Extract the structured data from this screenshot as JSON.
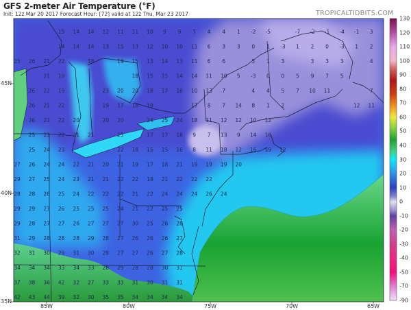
{
  "header": {
    "title": "GFS 2-meter Air Temperature (°F)",
    "subtitle": "Init: 12z Mar 20 2017   Forecast Hour: [72]   valid at 12z Thu, Mar 23 2017",
    "watermark": "TROPICALTIDBITS.COM"
  },
  "axes": {
    "lat_labels": [
      "45N",
      "40N",
      "35N"
    ],
    "lon_labels": [
      "85W",
      "80W",
      "75W",
      "70W",
      "65W"
    ]
  },
  "colorbar": {
    "unit": "°F",
    "ticks": [
      "130",
      "120",
      "110",
      "100",
      "90",
      "80",
      "70",
      "60",
      "50",
      "40",
      "30",
      "20",
      "10",
      "0",
      "-10",
      "-20",
      "-30",
      "-40",
      "-50",
      "-70",
      "-90"
    ]
  },
  "temperature_grid": [
    [
      null,
      null,
      null,
      15,
      14,
      14,
      12,
      11,
      11,
      10,
      9,
      9,
      7,
      4,
      4,
      1,
      -2,
      -5,
      null,
      -7,
      -2,
      -1,
      -4,
      -1,
      3
    ],
    [
      null,
      null,
      null,
      14,
      14,
      14,
      13,
      15,
      13,
      12,
      10,
      10,
      11,
      6,
      3,
      3,
      0,
      1,
      -3,
      1,
      2,
      0,
      -3,
      1,
      2
    ],
    [
      25,
      26,
      21,
      22,
      null,
      18,
      null,
      19,
      15,
      13,
      14,
      13,
      11,
      6,
      6,
      null,
      5,
      1,
      3,
      null,
      3,
      3,
      3,
      null,
      4
    ],
    [
      null,
      null,
      21,
      19,
      null,
      null,
      null,
      null,
      18,
      15,
      15,
      14,
      14,
      11,
      10,
      5,
      -3,
      0,
      0,
      5,
      9,
      7,
      5,
      null,
      null
    ],
    [
      null,
      26,
      22,
      19,
      null,
      null,
      23,
      20,
      20,
      18,
      17,
      16,
      10,
      13,
      7,
      null,
      4,
      4,
      5,
      7,
      10,
      11,
      null,
      null,
      7
    ],
    [
      null,
      26,
      21,
      22,
      null,
      null,
      19,
      17,
      18,
      19,
      null,
      null,
      17,
      8,
      7,
      14,
      8,
      1,
      2,
      null,
      null,
      null,
      null,
      12,
      11
    ],
    [
      null,
      26,
      23,
      22,
      20,
      null,
      20,
      20,
      null,
      24,
      25,
      24,
      18,
      11,
      12,
      12,
      10,
      12
    ],
    [
      null,
      25,
      23,
      22,
      21,
      21,
      null,
      25,
      null,
      17,
      17,
      18,
      9,
      7,
      13,
      9,
      14,
      16
    ],
    [
      null,
      25,
      24,
      23,
      null,
      null,
      null,
      22,
      18,
      15,
      15,
      16,
      8,
      11,
      18,
      12,
      16,
      19,
      12
    ],
    [
      27,
      26,
      24,
      24,
      22,
      21,
      20,
      21,
      19,
      17,
      18,
      21,
      19,
      19,
      19,
      20
    ],
    [
      29,
      27,
      25,
      24,
      23,
      21,
      21,
      22,
      22,
      18,
      21,
      22,
      22,
      22
    ],
    [
      28,
      28,
      26,
      25,
      24,
      22,
      22,
      22,
      21,
      22,
      24,
      24,
      24,
      26,
      24
    ],
    [
      29,
      29,
      27,
      26,
      25,
      25,
      25,
      24,
      21,
      22,
      25,
      25
    ],
    [
      29,
      28,
      27,
      27,
      26,
      27,
      27,
      27,
      30,
      25,
      26,
      28
    ],
    [
      31,
      29,
      28,
      28,
      28,
      29,
      28,
      27,
      26,
      26,
      26,
      27
    ],
    [
      32,
      31,
      30,
      29,
      31,
      30,
      28,
      27,
      27,
      26,
      27,
      28
    ],
    [
      34,
      34,
      34,
      33,
      34,
      33,
      28,
      29,
      28,
      28,
      30,
      31
    ],
    [
      37,
      38,
      36,
      42,
      32,
      27,
      33,
      33,
      31,
      30,
      31,
      31
    ],
    [
      42,
      43,
      44,
      39,
      32,
      30,
      35,
      35,
      34,
      34,
      34,
      34
    ]
  ],
  "colors": {
    "cold_violet": "#5046c8",
    "lavender": "#b0a8e0",
    "blue": "#3d63e2",
    "cyan": "#22d0f0",
    "green": "#2ea84a"
  }
}
